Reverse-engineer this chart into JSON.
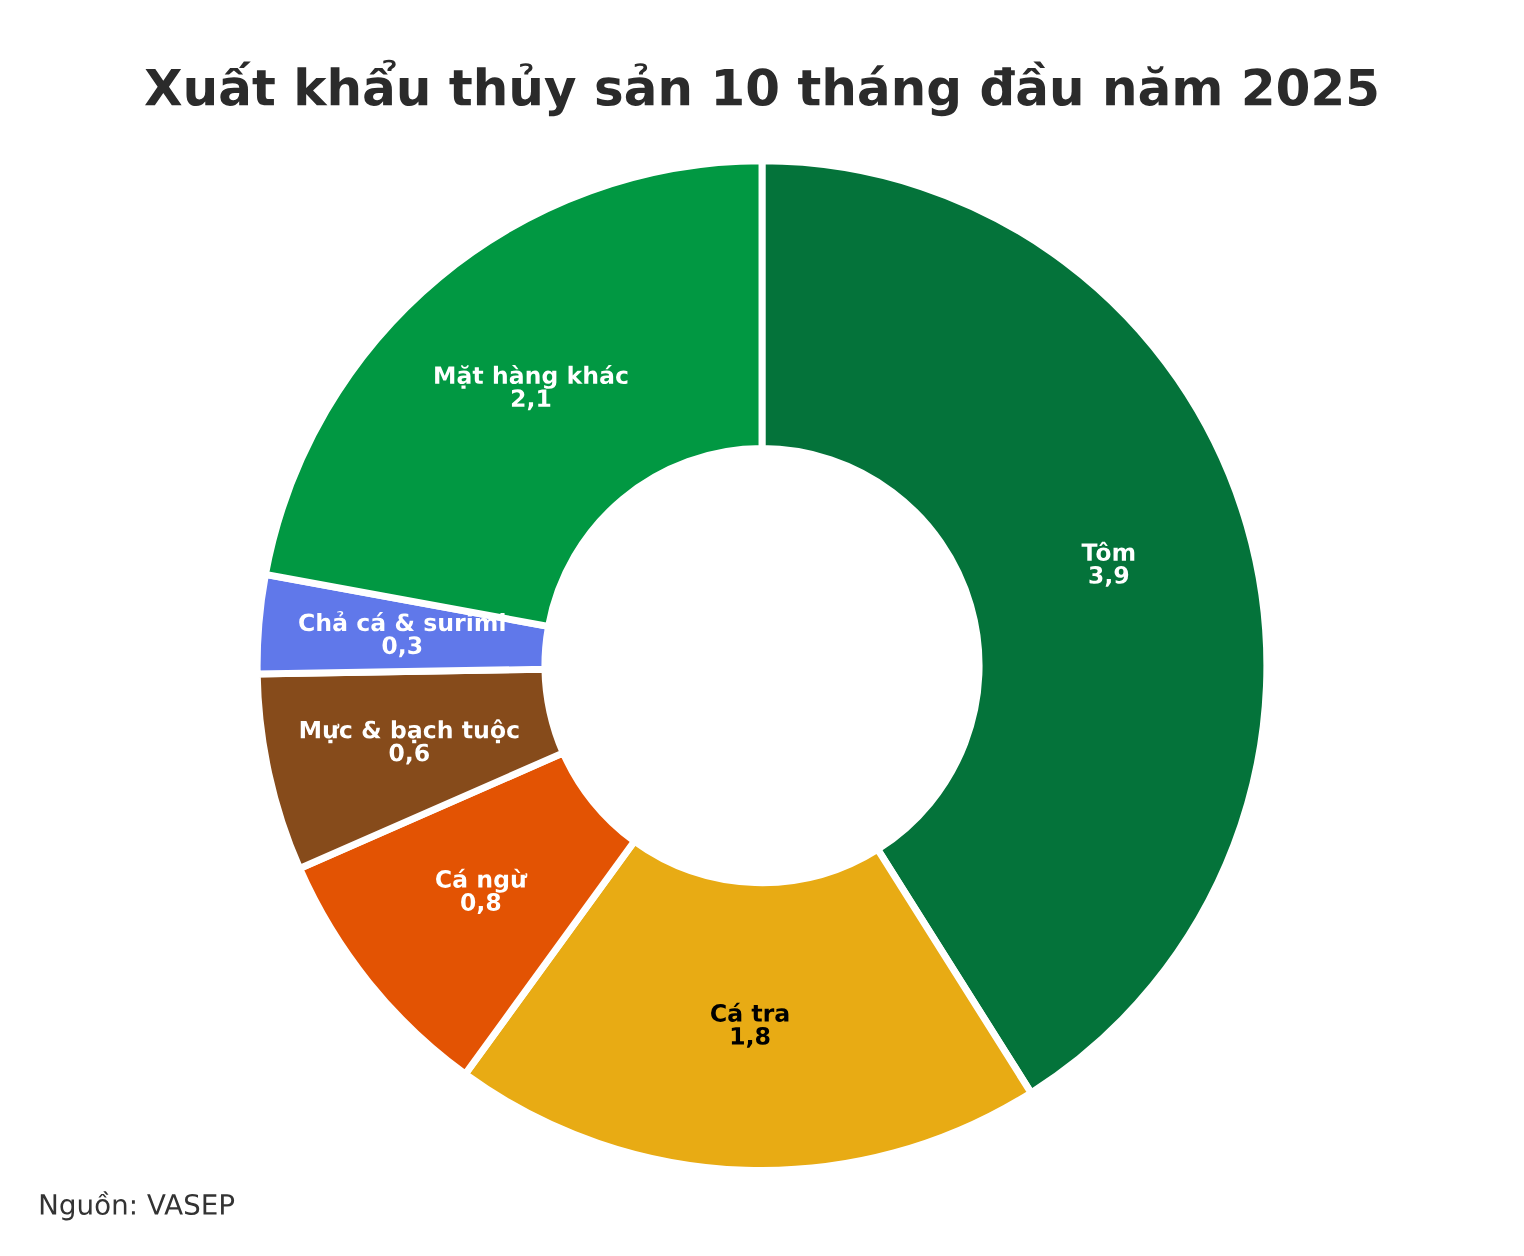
{
  "chart_data": {
    "type": "donut",
    "title": "Xuất khẩu thủy sản 10 tháng đầu năm 2025",
    "categories": [
      "Tôm",
      "Cá tra",
      "Cá ngừ",
      "Mực & bạch tuộc",
      "Chả cá & surimi",
      "Mặt hàng khác"
    ],
    "values": [
      3.9,
      1.8,
      0.8,
      0.6,
      0.3,
      2.1
    ],
    "value_labels": [
      "3,9",
      "1,8",
      "0,8",
      "0,6",
      "0,3",
      "2,1"
    ],
    "colors": [
      "#04733a",
      "#e8ab14",
      "#e35303",
      "#864b1b",
      "#6078ea",
      "#019842"
    ],
    "annotations": [
      "Nguồn: VASEP"
    ],
    "legend": false
  }
}
